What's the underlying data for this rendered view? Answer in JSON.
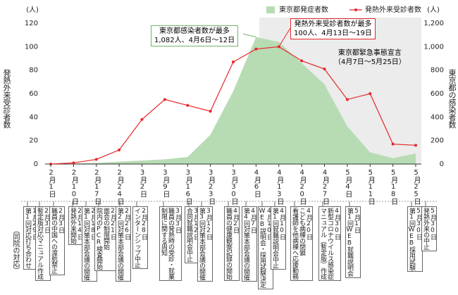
{
  "chart_data": {
    "type": "line",
    "y_unit": "(人)",
    "y2_unit": "(人)",
    "ylabel": "発熱外来受診者数",
    "y2label": "東京都の感染者数",
    "categories": [
      "2月1日",
      "2月10日",
      "2月17日",
      "2月24日",
      "3月2日",
      "3月9日",
      "3月16日",
      "3月23日",
      "3月30日",
      "4月6日",
      "4月13日",
      "4月20日",
      "4月27日",
      "5月4日",
      "5月11日",
      "5月18日",
      "5月25日"
    ],
    "series": [
      {
        "name": "東京都発症者数",
        "type": "area",
        "axis": "y2",
        "color": "#b7dcb4",
        "values": [
          0,
          5,
          10,
          20,
          30,
          40,
          60,
          250,
          620,
          1082,
          1040,
          860,
          680,
          320,
          100,
          50,
          90
        ]
      },
      {
        "name": "発熱外来受診者数",
        "type": "line",
        "color": "#e8262a",
        "values": [
          0,
          1,
          4,
          12,
          38,
          55,
          50,
          45,
          87,
          98,
          100,
          88,
          81,
          55,
          60,
          17,
          16
        ]
      }
    ],
    "ylim": [
      0,
      120
    ],
    "yticks": [
      0,
      20,
      40,
      60,
      80,
      100,
      120
    ],
    "y2lim": [
      0,
      1200
    ],
    "y2ticks": [
      0,
      200,
      400,
      600,
      {
        "value": 800,
        "label": "800"
      },
      {
        "value": 1000,
        "label": "1,000"
      },
      {
        "value": 1200,
        "label": "1,200"
      }
    ],
    "annotations": [
      {
        "lines": [
          "東京都感染者数が最多",
          "1,082人、4月6日〜12日"
        ],
        "color": "#6fb56a"
      },
      {
        "lines": [
          "発熱外来受診者数が最多",
          "100人、4月13日〜19日"
        ],
        "color": "#e8262a"
      },
      {
        "lines": [
          "東京都緊急事態宣言",
          "（4月7日〜5月25日）"
        ],
        "color": "#e6e6e6"
      }
    ],
    "events_header": "（同院の対応）",
    "events": [
      {
        "lines": [
          "1月29日",
          "第1回対応打ち合わせ"
        ]
      },
      {
        "lines": [
          "2月3日",
          "暫定版対応マニュアル作成"
        ]
      },
      {
        "lines": [
          "2月3日",
          "職員の中国への渡航禁止"
        ]
      },
      {
        "lines": [
          "2月14日",
          "発熱外来開始"
        ]
      },
      {
        "lines": [
          "2月18日",
          "第1回対策本部会議の開催"
        ]
      },
      {
        "lines": [
          "2月21日",
          "面会の制限開始",
          "院内のPCR検査開始"
        ]
      },
      {
        "lines": [
          "2月26日",
          "第2回対策本部会議の開催"
        ]
      },
      {
        "lines": [
          "2月28日",
          "インターンシップ中止"
        ]
      },
      {
        "lines": [
          "3月3日",
          "職員の発熱時の受診・就業",
          "制限に関する周知"
        ]
      },
      {
        "lines": [
          "3月12日",
          "合同就職説明会中止"
        ]
      },
      {
        "lines": [
          "3月12日",
          "第3回対策本部会議の開催"
        ]
      },
      {
        "lines": [
          "4月2日",
          "職員の健康観察記録の開始"
        ]
      },
      {
        "lines": [
          "4月7日",
          "第4回対策本部会議の開催"
        ]
      },
      {
        "lines": [
          "4月10日",
          "WEB説明会・採用試験決定"
        ]
      },
      {
        "lines": [
          "4月10日",
          "第1回就職説明会中止"
        ]
      },
      {
        "lines": [
          "4月20日",
          "こども病棟の閉鎖",
          "看護師を他病棟へ応援勤務"
        ]
      },
      {
        "lines": [
          "4月30日",
          "新型コロナウイルス感染症",
          "マニュアル（暫定版）作成"
        ]
      },
      {
        "lines": [
          "5月1日",
          "第1回WEB就職説明会"
        ]
      },
      {
        "lines": [
          "5月30日",
          "第1回WEB採用試験"
        ]
      },
      {
        "lines": [
          "5月30日",
          "発熱外来の中止"
        ]
      }
    ]
  }
}
